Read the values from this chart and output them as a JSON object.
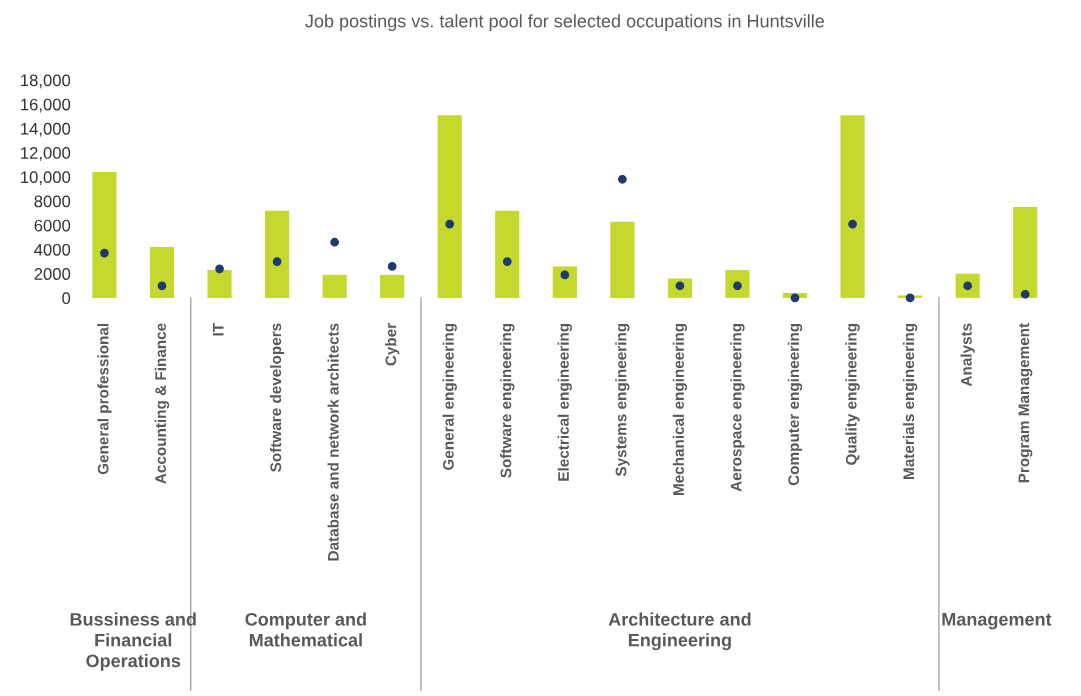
{
  "chart_data": {
    "type": "bar",
    "title": "Job postings vs. talent pool for selected occupations in Huntsville",
    "categories": [
      "General professional",
      "Accounting & Finance",
      "IT",
      "Software developers",
      "Database and network architects",
      "Cyber",
      "General engineering",
      "Software engineering",
      "Electrical engineering",
      "Systems engineering",
      "Mechanical engineering",
      "Aerospace engineering",
      "Computer engineering",
      "Quality engineering",
      "Materials engineering",
      "Analysts",
      "Program Management"
    ],
    "series": [
      {
        "color": "#c5d82e",
        "values": [
          10400,
          4200,
          2300,
          7200,
          1900,
          1900,
          15100,
          7200,
          2600,
          6300,
          1600,
          2300,
          400,
          15100,
          200,
          2000,
          7500
        ]
      },
      {
        "type": "scatter",
        "color": "#1f3a6e",
        "values": [
          3700,
          1000,
          2400,
          3000,
          4600,
          2600,
          6100,
          3000,
          1900,
          9800,
          1000,
          1000,
          0,
          6100,
          0,
          1000,
          300
        ]
      }
    ],
    "ylim": [
      0,
      18000
    ],
    "yticks": [
      0,
      2000,
      4000,
      6000,
      8000,
      {
        "value": 10000,
        "label": "10,000"
      },
      {
        "value": 12000,
        "label": "12,000"
      },
      {
        "value": 14000,
        "label": "14,000"
      },
      {
        "value": 16000,
        "label": "16,000"
      },
      {
        "value": 18000,
        "label": "18,000"
      }
    ],
    "grid": false,
    "legend": false,
    "marker": "circle",
    "annotations": [
      "Bussiness and\nFinancial\nOperations",
      "Computer and\nMathematical",
      "Architecture and\nEngineering",
      "Management"
    ]
  }
}
